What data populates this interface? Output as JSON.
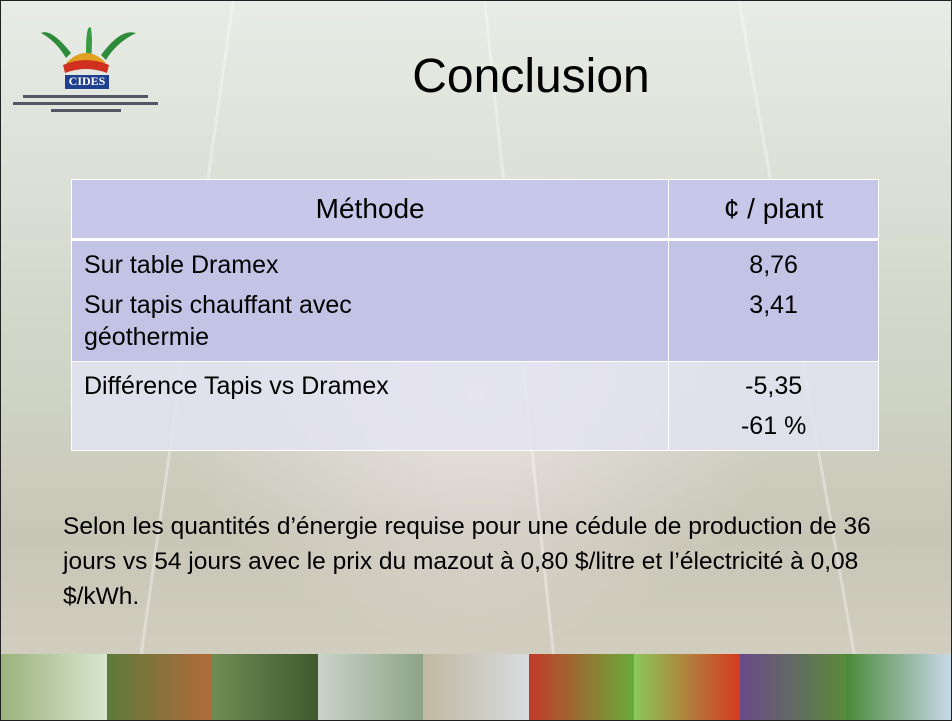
{
  "logo": "CIDES",
  "title": "Conclusion",
  "table": {
    "header": [
      "Méthode",
      "¢ / plant"
    ],
    "rows": [
      [
        [
          "Sur table  Dramex",
          "Sur tapis chauffant avec géothermie"
        ],
        [
          "8,76",
          "3,41"
        ]
      ],
      [
        [
          "Différence Tapis vs Dramex"
        ],
        [
          "-5,35",
          "-61 %"
        ]
      ]
    ]
  },
  "paragraph": "Selon les quantités d’énergie requise pour une cédule de production  de 36 jours vs 54 jours avec le prix du mazout à 0,80 $/litre et l’électricité  à 0,08 $/kWh."
}
